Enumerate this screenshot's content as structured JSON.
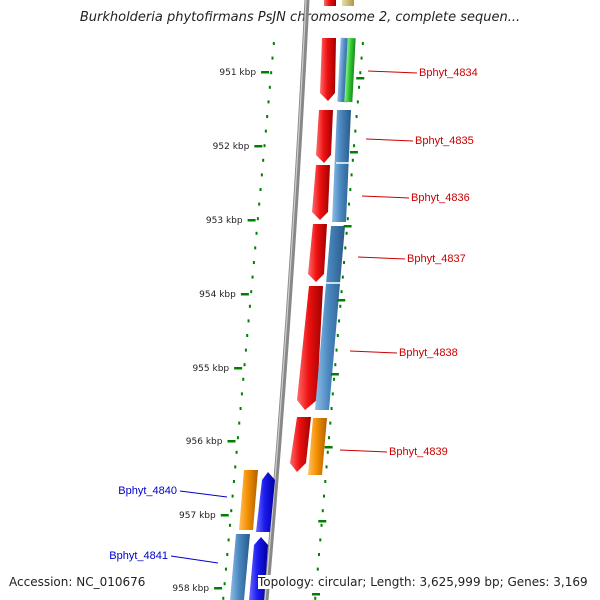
{
  "title": "Burkholderia phytofirmans PsJN chromosome 2, complete sequen...",
  "ticks": [
    "951 kbp",
    "952 kbp",
    "953 kbp",
    "954 kbp",
    "955 kbp",
    "956 kbp",
    "957 kbp",
    "958 kbp"
  ],
  "genes_right": [
    "Bphyt_4834",
    "Bphyt_4835",
    "Bphyt_4836",
    "Bphyt_4837",
    "Bphyt_4838",
    "Bphyt_4839"
  ],
  "genes_left": [
    "Bphyt_4840",
    "Bphyt_4841"
  ],
  "footer": {
    "accession": "Accession: NC_010676",
    "topology": "Topology: circular; Length: 3,625,999 bp; Genes: 3,169"
  },
  "colors": {
    "label_right": "#cc0000",
    "label_left": "#0000cc",
    "tick": "#008000",
    "red": "#ee1111",
    "steelblue": "#4a88c0",
    "orange": "#f49000",
    "blue": "#1a1aee",
    "green": "#33cc33",
    "backbone": "#888888"
  }
}
